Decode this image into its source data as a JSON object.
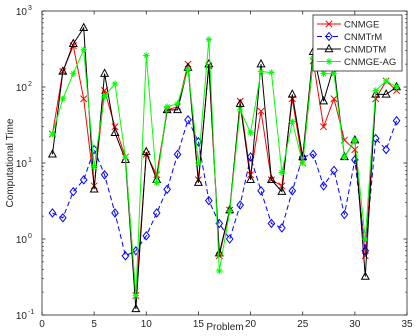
{
  "chart_data": {
    "type": "line",
    "title": "",
    "xlabel": "Problem",
    "ylabel": "Computational Time",
    "xlim": [
      0,
      35
    ],
    "ylim": [
      0.1,
      1000
    ],
    "yscale": "log",
    "x_ticks": [
      "0",
      "5",
      "10",
      "15",
      "20",
      "25",
      "30",
      "35"
    ],
    "x_tick_values": [
      0,
      5,
      10,
      15,
      20,
      25,
      30,
      35
    ],
    "y_tick_values": [
      0.1,
      1,
      10,
      100,
      1000
    ],
    "y_tick_labels": [
      {
        "base": "10",
        "exp": "-1"
      },
      {
        "base": "10",
        "exp": "0"
      },
      {
        "base": "10",
        "exp": "1"
      },
      {
        "base": "10",
        "exp": "2"
      },
      {
        "base": "10",
        "exp": "3"
      }
    ],
    "grid": false,
    "legend_position": "top-right",
    "x": [
      1,
      2,
      3,
      4,
      5,
      6,
      7,
      8,
      9,
      10,
      11,
      12,
      13,
      14,
      15,
      16,
      17,
      18,
      19,
      20,
      21,
      22,
      23,
      24,
      25,
      26,
      27,
      28,
      29,
      30,
      31,
      32,
      33,
      34
    ],
    "series": [
      {
        "name": "CNMGE",
        "color": "#ff0000",
        "marker": "x",
        "dash": "solid",
        "values": [
          24,
          160,
          350,
          70,
          5,
          90,
          30,
          12,
          0.18,
          13,
          7,
          50,
          55,
          200,
          6,
          190,
          0.6,
          2.4,
          65,
          7,
          48,
          6,
          5,
          70,
          10,
          220,
          30,
          70,
          20,
          15,
          0.6,
          70,
          120,
          90
        ]
      },
      {
        "name": "CNMTrM",
        "color": "#0000ff",
        "marker": "diamond",
        "dash": "dashed",
        "values": [
          2.2,
          1.9,
          4.2,
          6,
          15,
          7,
          2.2,
          0.6,
          0.7,
          1.1,
          2.2,
          4.5,
          13,
          37,
          19,
          3.2,
          1.6,
          1.0,
          2.8,
          12,
          4.3,
          1.6,
          1.4,
          4.3,
          12,
          13,
          5,
          8,
          2.1,
          11,
          0.7,
          21,
          15,
          36
        ]
      },
      {
        "name": "CNMDTM",
        "color": "#000000",
        "marker": "triangle",
        "dash": "solid",
        "values": [
          13,
          160,
          370,
          600,
          4.5,
          150,
          25,
          11,
          0.12,
          14,
          6,
          50,
          50,
          180,
          5.5,
          200,
          0.65,
          2.4,
          60,
          6,
          200,
          6,
          4.2,
          80,
          12,
          290,
          65,
          190,
          12,
          20,
          0.32,
          80,
          80,
          100
        ]
      },
      {
        "name": "CNMGE-AG",
        "color": "#00ff00",
        "marker": "star",
        "dash": "solid",
        "values": [
          24,
          70,
          150,
          310,
          9,
          75,
          110,
          12,
          0.18,
          260,
          5.5,
          55,
          60,
          170,
          10,
          420,
          0.38,
          2.3,
          50,
          25,
          160,
          155,
          7.5,
          35,
          10,
          240,
          150,
          150,
          12,
          20,
          1.0,
          90,
          120,
          100
        ]
      }
    ]
  }
}
